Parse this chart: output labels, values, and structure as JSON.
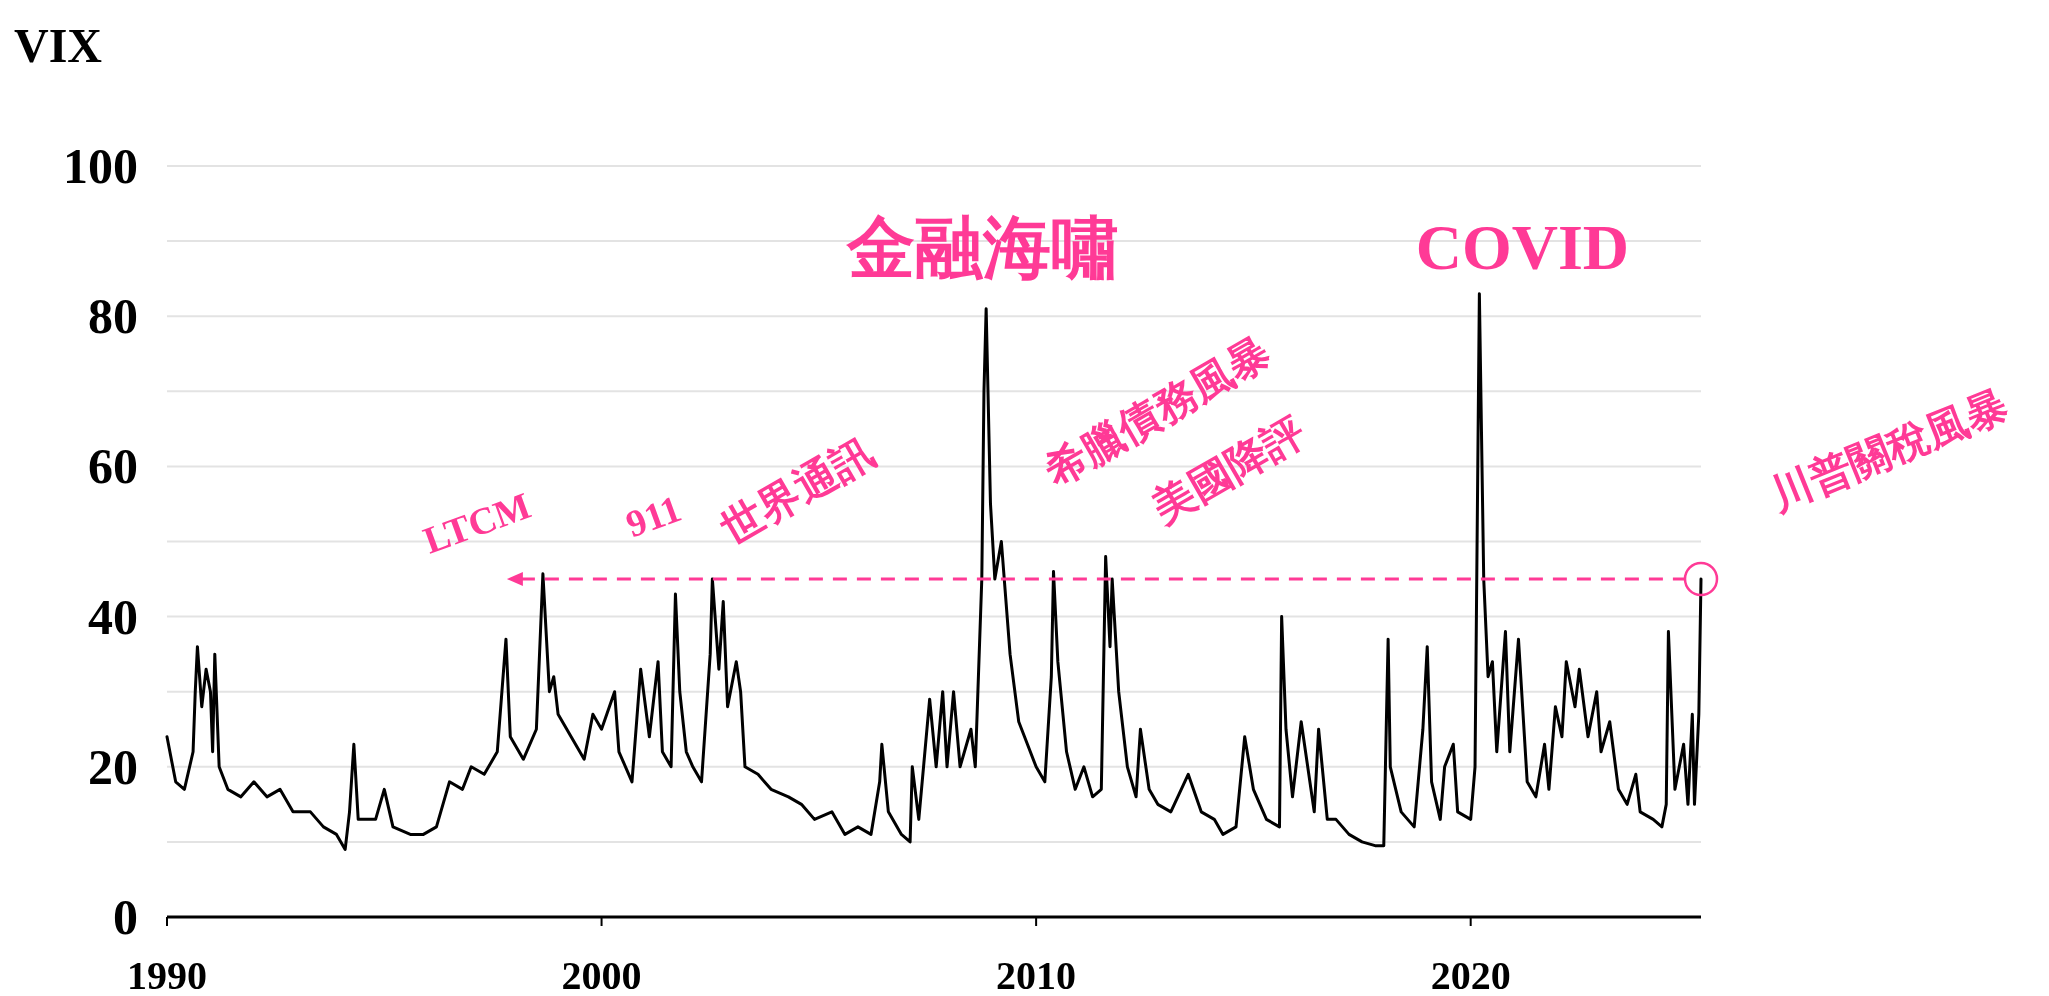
{
  "chart_data": {
    "type": "line",
    "ylabel": "VIX",
    "x": [
      1990.0,
      1990.2,
      1990.4,
      1990.6,
      1990.65,
      1990.7,
      1990.8,
      1990.9,
      1991.0,
      1991.05,
      1991.1,
      1991.2,
      1991.4,
      1991.7,
      1992.0,
      1992.3,
      1992.6,
      1992.9,
      1993.3,
      1993.6,
      1993.9,
      1994.1,
      1994.2,
      1994.3,
      1994.4,
      1994.8,
      1995.0,
      1995.2,
      1995.6,
      1995.9,
      1996.2,
      1996.5,
      1996.8,
      1997.0,
      1997.3,
      1997.6,
      1997.8,
      1997.9,
      1998.2,
      1998.5,
      1998.65,
      1998.8,
      1998.9,
      1999.0,
      1999.3,
      1999.6,
      1999.8,
      2000.0,
      2000.3,
      2000.4,
      2000.7,
      2000.9,
      2001.1,
      2001.3,
      2001.4,
      2001.6,
      2001.7,
      2001.8,
      2001.95,
      2002.1,
      2002.3,
      2002.5,
      2002.55,
      2002.7,
      2002.8,
      2002.9,
      2003.1,
      2003.2,
      2003.3,
      2003.6,
      2003.9,
      2004.3,
      2004.6,
      2004.9,
      2005.3,
      2005.6,
      2005.9,
      2006.2,
      2006.4,
      2006.45,
      2006.6,
      2006.9,
      2007.1,
      2007.15,
      2007.3,
      2007.55,
      2007.7,
      2007.85,
      2007.95,
      2008.1,
      2008.25,
      2008.5,
      2008.6,
      2008.75,
      2008.8,
      2008.85,
      2008.95,
      2009.05,
      2009.2,
      2009.4,
      2009.6,
      2009.8,
      2010.0,
      2010.2,
      2010.35,
      2010.4,
      2010.5,
      2010.7,
      2010.9,
      2011.1,
      2011.3,
      2011.5,
      2011.6,
      2011.7,
      2011.75,
      2011.9,
      2012.1,
      2012.3,
      2012.4,
      2012.6,
      2012.8,
      2013.1,
      2013.5,
      2013.8,
      2014.1,
      2014.3,
      2014.6,
      2014.8,
      2015.0,
      2015.3,
      2015.6,
      2015.65,
      2015.75,
      2015.9,
      2016.1,
      2016.4,
      2016.5,
      2016.7,
      2016.9,
      2017.2,
      2017.5,
      2017.8,
      2018.0,
      2018.1,
      2018.15,
      2018.4,
      2018.7,
      2018.9,
      2019.0,
      2019.1,
      2019.3,
      2019.4,
      2019.6,
      2019.7,
      2020.0,
      2020.1,
      2020.2,
      2020.3,
      2020.4,
      2020.5,
      2020.6,
      2020.8,
      2020.9,
      2021.1,
      2021.3,
      2021.5,
      2021.7,
      2021.8,
      2021.95,
      2022.1,
      2022.2,
      2022.4,
      2022.5,
      2022.7,
      2022.9,
      2023.0,
      2023.2,
      2023.4,
      2023.6,
      2023.8,
      2023.9,
      2024.2,
      2024.4,
      2024.5,
      2024.55,
      2024.7,
      2024.9,
      2025.0,
      2025.1,
      2025.15,
      2025.25,
      2025.3
    ],
    "series": [
      {
        "color": "#000000",
        "values": [
          24,
          18,
          17,
          22,
          30,
          36,
          28,
          33,
          30,
          22,
          35,
          20,
          17,
          16,
          18,
          16,
          17,
          14,
          14,
          12,
          11,
          9,
          14,
          23,
          13,
          13,
          17,
          12,
          11,
          11,
          12,
          18,
          17,
          20,
          19,
          22,
          37,
          24,
          21,
          25,
          45.7,
          30,
          32,
          27,
          24,
          21,
          27,
          25,
          30,
          22,
          18,
          33,
          24,
          34,
          22,
          20,
          43,
          30,
          22,
          20,
          18,
          35,
          45,
          33,
          42,
          28,
          34,
          30,
          20,
          19,
          17,
          16,
          15,
          13,
          14,
          11,
          12,
          11,
          18,
          23,
          14,
          11,
          10,
          20,
          13,
          29,
          20,
          30,
          20,
          30,
          20,
          25,
          20,
          45,
          70,
          81,
          55,
          45,
          50,
          35,
          26,
          23,
          20,
          18,
          32,
          46,
          34,
          22,
          17,
          20,
          16,
          17,
          48,
          36,
          45,
          30,
          20,
          16,
          25,
          17,
          15,
          14,
          19,
          14,
          13,
          11,
          12,
          24,
          17,
          13,
          12,
          40,
          25,
          16,
          26,
          14,
          25,
          13,
          13,
          11,
          10,
          9.5,
          9.5,
          37,
          20,
          14,
          12,
          25,
          36,
          18,
          13,
          20,
          23,
          14,
          13,
          20,
          83,
          45,
          32,
          34,
          22,
          38,
          22,
          37,
          18,
          16,
          23,
          17,
          28,
          24,
          34,
          28,
          33,
          24,
          30,
          22,
          26,
          17,
          15,
          19,
          14,
          13,
          12,
          15,
          38,
          17,
          23,
          15,
          27,
          15,
          27,
          45
        ]
      }
    ],
    "xlim": [
      1990,
      2025.3
    ],
    "xticks": [
      1990,
      2000,
      2010,
      2020
    ],
    "ylim": [
      0,
      100
    ],
    "yticks": [
      0,
      {
        "value": 10,
        "label": null
      },
      20,
      {
        "value": 30,
        "label": null
      },
      40,
      {
        "value": 50,
        "label": null
      },
      60,
      {
        "value": 70,
        "label": null
      },
      80,
      {
        "value": 90,
        "label": null
      },
      100
    ],
    "grid": "y",
    "ref_lines": [
      {
        "axis": "y",
        "value": 45,
        "color": "#ff3a96",
        "line_style": "dashed"
      }
    ],
    "annotations": [
      {
        "text": "LTCM",
        "x": 1998.65,
        "y": 45.7
      },
      {
        "text": "911",
        "x": 2001.7,
        "y": 43
      },
      {
        "text": "世界通訊",
        "x": 2002.55,
        "y": 45
      },
      {
        "text": "金融海嘯",
        "x": 2008.85,
        "y": 81
      },
      {
        "text": "希臘債務風暴",
        "x": 2010.4,
        "y": 46
      },
      {
        "text": "美國降評",
        "x": 2011.6,
        "y": 48
      },
      {
        "text": "COVID",
        "x": 2020.2,
        "y": 83
      },
      {
        "text": "川普關稅風暴",
        "x": 2025.3,
        "y": 45
      }
    ]
  }
}
